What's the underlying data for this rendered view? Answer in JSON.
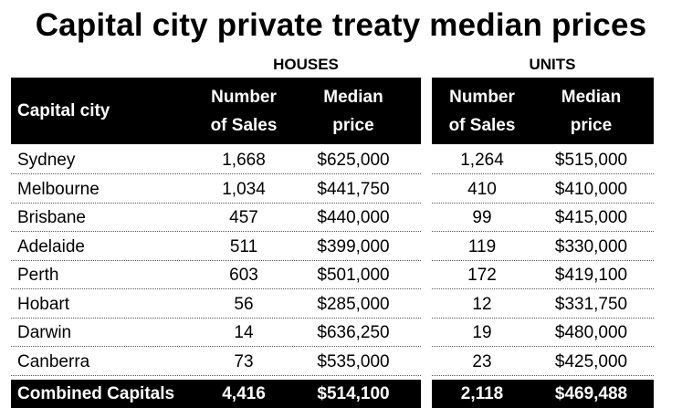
{
  "chart_data": {
    "type": "table",
    "title": "Capital city private treaty median prices",
    "groups": [
      "HOUSES",
      "UNITS"
    ],
    "columns": [
      "Capital city",
      "Number\nof Sales",
      "Median\nprice",
      "Number\nof Sales",
      "Median\nprice"
    ],
    "rows": [
      {
        "city": "Sydney",
        "house_sales": "1,668",
        "house_price": "$625,000",
        "unit_sales": "1,264",
        "unit_price": "$515,000"
      },
      {
        "city": "Melbourne",
        "house_sales": "1,034",
        "house_price": "$441,750",
        "unit_sales": "410",
        "unit_price": "$410,000"
      },
      {
        "city": "Brisbane",
        "house_sales": "457",
        "house_price": "$440,000",
        "unit_sales": "99",
        "unit_price": "$415,000"
      },
      {
        "city": "Adelaide",
        "house_sales": "511",
        "house_price": "$399,000",
        "unit_sales": "119",
        "unit_price": "$330,000"
      },
      {
        "city": "Perth",
        "house_sales": "603",
        "house_price": "$501,000",
        "unit_sales": "172",
        "unit_price": "$419,100"
      },
      {
        "city": "Hobart",
        "house_sales": "56",
        "house_price": "$285,000",
        "unit_sales": "12",
        "unit_price": "$331,750"
      },
      {
        "city": "Darwin",
        "house_sales": "14",
        "house_price": "$636,250",
        "unit_sales": "19",
        "unit_price": "$480,000"
      },
      {
        "city": "Canberra",
        "house_sales": "73",
        "house_price": "$535,000",
        "unit_sales": "23",
        "unit_price": "$425,000"
      }
    ],
    "total": {
      "city": "Combined Capitals",
      "house_sales": "4,416",
      "house_price": "$514,100",
      "unit_sales": "2,118",
      "unit_price": "$469,488"
    }
  },
  "colors": {
    "header_bg": "#000000",
    "header_text": "#ffffff",
    "body_text": "#000000",
    "row_divider": "#555555"
  }
}
